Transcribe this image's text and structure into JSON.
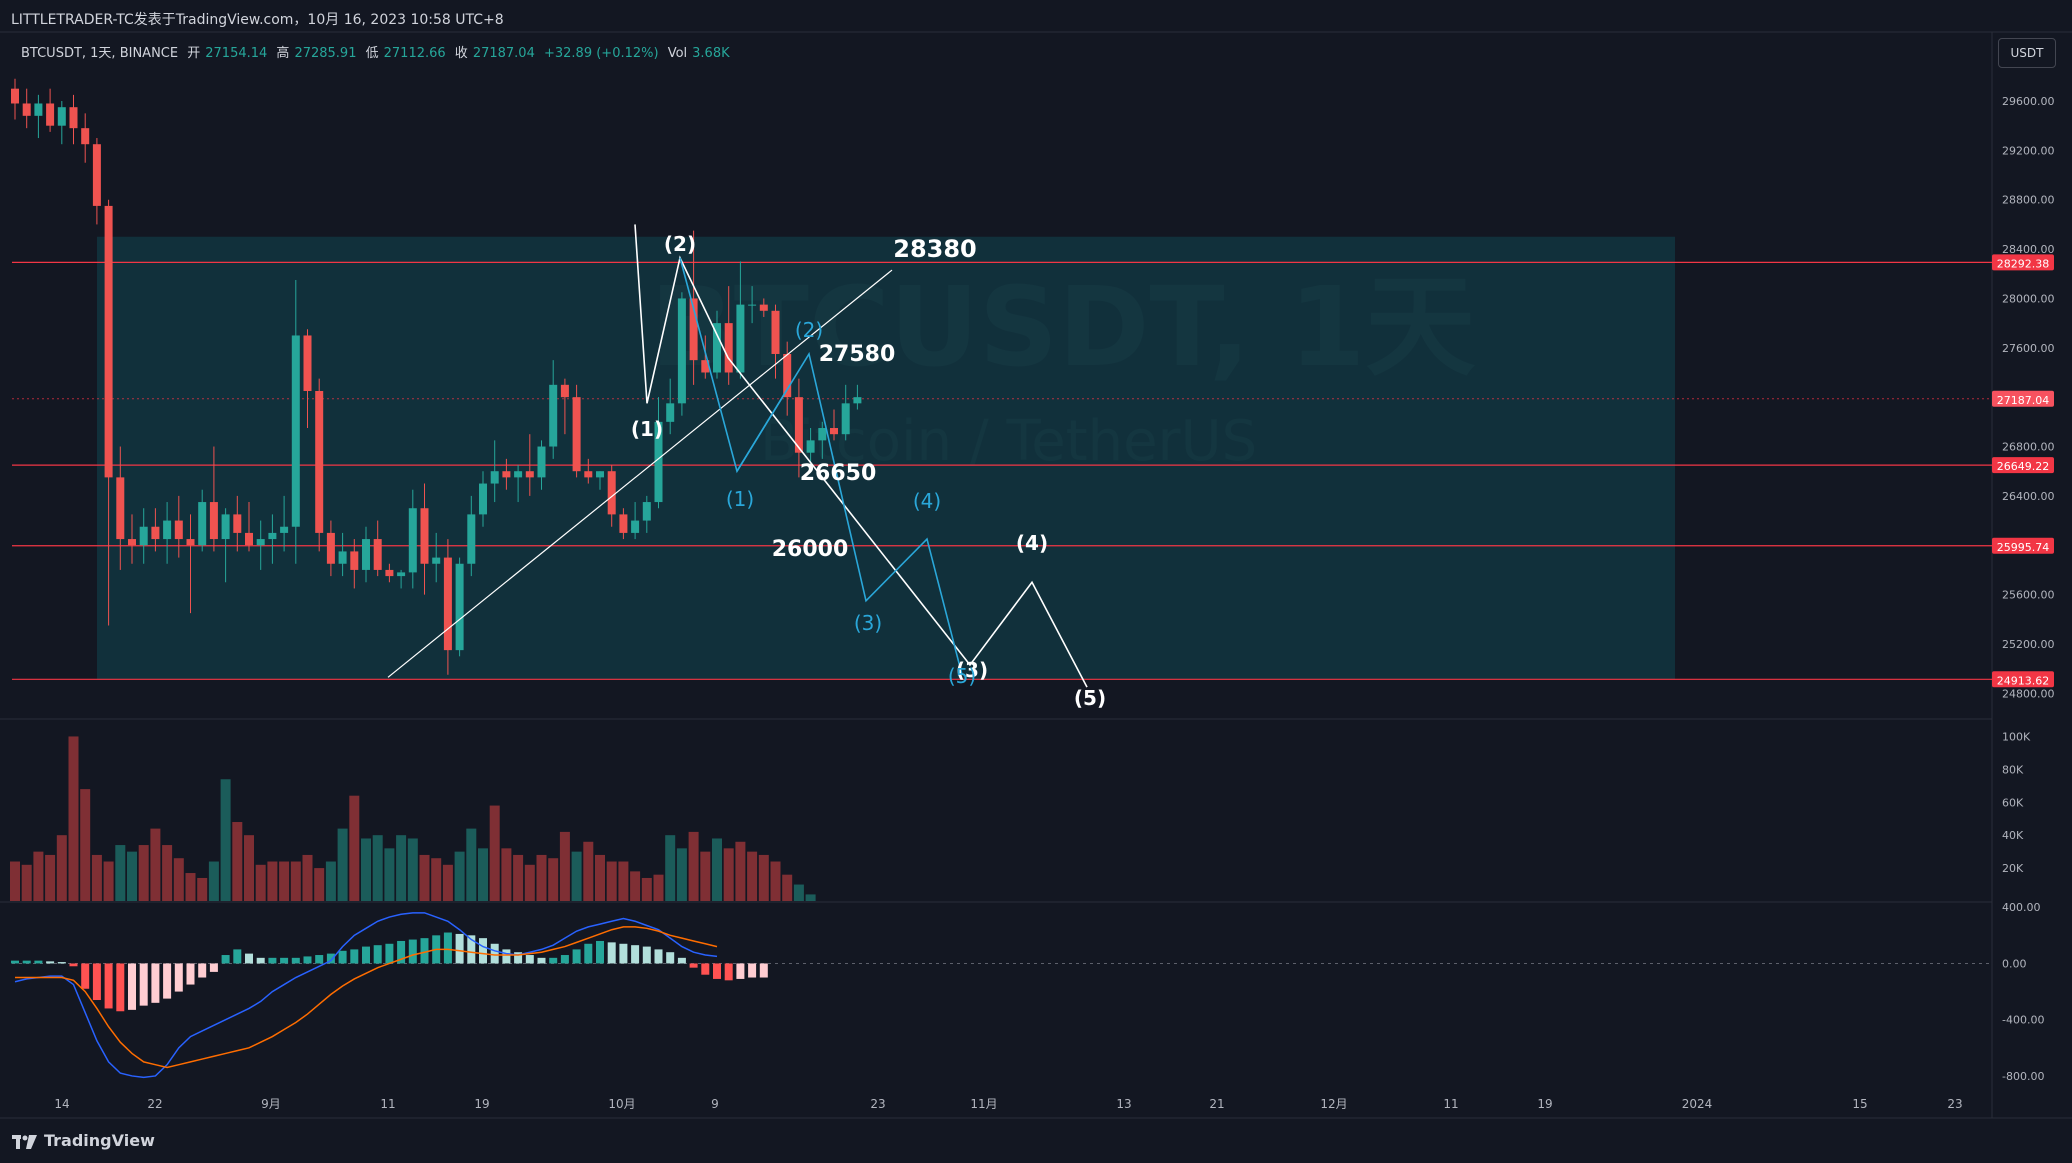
{
  "header": {
    "publisher_line": "LITTLETRADER-TC发表于TradingView.com，10月 16, 2023 10:58 UTC+8"
  },
  "symbol_bar": {
    "symbol": "BTCUSDT, 1天, BINANCE",
    "open_label": "开",
    "open": "27154.14",
    "high_label": "高",
    "high": "27285.91",
    "low_label": "低",
    "low": "27112.66",
    "close_label": "收",
    "close": "27187.04",
    "change": "+32.89 (+0.12%)",
    "vol_label": "Vol",
    "vol": "3.68K"
  },
  "unit_button": "USDT",
  "watermark": {
    "title": "BTCUSDT, 1天",
    "subtitle": "Bitcoin / TetherUS"
  },
  "brand": "TradingView",
  "colors": {
    "bg": "#131722",
    "up": "#26a69a",
    "down": "#ef5350",
    "zone": "#123a44",
    "hline": "#f23645",
    "macd": "#2962ff",
    "signal": "#ff6d00",
    "proj_cyan": "#2aa7d9",
    "proj_white": "#ffffff"
  },
  "chart_data": [
    {
      "type": "candlestick",
      "title": "BTCUSDT, 1天, BINANCE",
      "ylim": [
        24600,
        29900
      ],
      "y_ticks": [
        "29600.00",
        "29200.00",
        "28800.00",
        "28400.00",
        "28000.00",
        "27600.00",
        "26800.00",
        "26400.00",
        "25600.00",
        "25200.00",
        "24800.00"
      ],
      "x_ticks": [
        "14",
        "22",
        "9月",
        "11",
        "19",
        "10月",
        "9",
        "23",
        "11月",
        "13",
        "21",
        "12月",
        "11",
        "19",
        "2024",
        "15",
        "23"
      ],
      "hlines": [
        {
          "price": 28292.38,
          "label": "28292.38"
        },
        {
          "price": 26649.22,
          "label": "26649.22"
        },
        {
          "price": 25995.74,
          "label": "25995.74"
        },
        {
          "price": 24913.62,
          "label": "24913.62"
        }
      ],
      "last_price": {
        "price": 27187.04,
        "label": "27187.04"
      },
      "zone": {
        "top": 28500,
        "bottom": 24913.62
      },
      "candles": [
        [
          29700,
          29780,
          29450,
          29580
        ],
        [
          29580,
          29700,
          29380,
          29480
        ],
        [
          29480,
          29650,
          29300,
          29580
        ],
        [
          29580,
          29700,
          29350,
          29400
        ],
        [
          29400,
          29600,
          29250,
          29550
        ],
        [
          29550,
          29650,
          29250,
          29380
        ],
        [
          29380,
          29500,
          29100,
          29250
        ],
        [
          29250,
          29300,
          28600,
          28750
        ],
        [
          28750,
          28800,
          25350,
          26550
        ],
        [
          26550,
          26800,
          25800,
          26050
        ],
        [
          26050,
          26250,
          25850,
          26000
        ],
        [
          26000,
          26300,
          25850,
          26150
        ],
        [
          26150,
          26300,
          25950,
          26050
        ],
        [
          26050,
          26350,
          25850,
          26200
        ],
        [
          26200,
          26400,
          25900,
          26050
        ],
        [
          26050,
          26250,
          25450,
          26000
        ],
        [
          26000,
          26450,
          25950,
          26350
        ],
        [
          26350,
          26800,
          25950,
          26050
        ],
        [
          26050,
          26300,
          25700,
          26250
        ],
        [
          26250,
          26400,
          25950,
          26100
        ],
        [
          26100,
          26350,
          25950,
          26000
        ],
        [
          26000,
          26200,
          25800,
          26050
        ],
        [
          26050,
          26250,
          25850,
          26100
        ],
        [
          26100,
          26400,
          25950,
          26150
        ],
        [
          26150,
          28150,
          25850,
          27700
        ],
        [
          27700,
          27750,
          26950,
          27250
        ],
        [
          27250,
          27350,
          25950,
          26100
        ],
        [
          26100,
          26200,
          25750,
          25850
        ],
        [
          25850,
          26100,
          25750,
          25950
        ],
        [
          25950,
          26050,
          25650,
          25800
        ],
        [
          25800,
          26150,
          25700,
          26050
        ],
        [
          26050,
          26200,
          25750,
          25800
        ],
        [
          25800,
          25850,
          25700,
          25750
        ],
        [
          25750,
          25800,
          25650,
          25780
        ],
        [
          25780,
          26450,
          25650,
          26300
        ],
        [
          26300,
          26500,
          25600,
          25850
        ],
        [
          25850,
          26100,
          25700,
          25900
        ],
        [
          25900,
          26050,
          24950,
          25150
        ],
        [
          25150,
          25900,
          25100,
          25850
        ],
        [
          25850,
          26400,
          25750,
          26250
        ],
        [
          26250,
          26600,
          26150,
          26500
        ],
        [
          26500,
          26850,
          26350,
          26600
        ],
        [
          26600,
          26700,
          26450,
          26550
        ],
        [
          26550,
          26650,
          26350,
          26600
        ],
        [
          26600,
          26900,
          26400,
          26550
        ],
        [
          26550,
          26850,
          26450,
          26800
        ],
        [
          26800,
          27500,
          26700,
          27300
        ],
        [
          27300,
          27350,
          26900,
          27200
        ],
        [
          27200,
          27300,
          26550,
          26600
        ],
        [
          26600,
          26700,
          26500,
          26550
        ],
        [
          26550,
          26600,
          26450,
          26600
        ],
        [
          26600,
          26650,
          26150,
          26250
        ],
        [
          26250,
          26300,
          26050,
          26100
        ],
        [
          26100,
          26350,
          26050,
          26200
        ],
        [
          26200,
          26400,
          26100,
          26350
        ],
        [
          26350,
          27200,
          26300,
          27000
        ],
        [
          27000,
          27350,
          26900,
          27150
        ],
        [
          27150,
          28050,
          27050,
          28000
        ],
        [
          28000,
          28550,
          27300,
          27500
        ],
        [
          27500,
          27700,
          27350,
          27400
        ],
        [
          27400,
          27900,
          27350,
          27800
        ],
        [
          27800,
          28100,
          27300,
          27400
        ],
        [
          27400,
          28300,
          27350,
          27950
        ],
        [
          27950,
          28100,
          27800,
          27950
        ],
        [
          27950,
          28000,
          27850,
          27900
        ],
        [
          27900,
          27950,
          27350,
          27550
        ],
        [
          27550,
          27650,
          27050,
          27200
        ],
        [
          27200,
          27350,
          26550,
          26750
        ],
        [
          26750,
          26950,
          26600,
          26850
        ],
        [
          26850,
          27000,
          26700,
          26950
        ],
        [
          26950,
          27100,
          26850,
          26900
        ],
        [
          26900,
          27300,
          26850,
          27150
        ],
        [
          27150,
          27300,
          27100,
          27200
        ]
      ]
    },
    {
      "type": "bar",
      "title": "Vol",
      "ylim": [
        0,
        110
      ],
      "y_ticks": [
        "100K",
        "80K",
        "60K",
        "40K",
        "20K"
      ],
      "values": [
        24,
        22,
        30,
        28,
        40,
        100,
        68,
        28,
        24,
        34,
        30,
        34,
        44,
        34,
        26,
        17,
        14,
        24,
        74,
        48,
        40,
        22,
        24,
        24,
        24,
        28,
        20,
        24,
        44,
        64,
        38,
        40,
        32,
        40,
        38,
        28,
        26,
        22,
        30,
        44,
        32,
        58,
        32,
        28,
        22,
        28,
        26,
        42,
        30,
        36,
        28,
        24,
        24,
        18,
        14,
        16,
        40,
        32,
        42,
        30,
        38,
        32,
        36,
        30,
        28,
        24,
        16,
        10,
        4
      ],
      "colors": [
        "d",
        "d",
        "d",
        "d",
        "d",
        "d",
        "d",
        "d",
        "d",
        "u",
        "u",
        "d",
        "d",
        "d",
        "d",
        "d",
        "d",
        "u",
        "u",
        "d",
        "d",
        "d",
        "d",
        "d",
        "d",
        "d",
        "d",
        "u",
        "u",
        "d",
        "u",
        "u",
        "u",
        "u",
        "u",
        "d",
        "d",
        "d",
        "u",
        "u",
        "u",
        "d",
        "d",
        "d",
        "d",
        "d",
        "d",
        "d",
        "u",
        "d",
        "d",
        "d",
        "d",
        "d",
        "d",
        "d",
        "u",
        "u",
        "d",
        "d",
        "u",
        "d",
        "d",
        "d",
        "d",
        "d",
        "d",
        "u",
        "u"
      ]
    },
    {
      "type": "line",
      "title": "MACD",
      "ylim": [
        -900,
        430
      ],
      "y_ticks": [
        "400.00",
        "0.00",
        "-400.00",
        "-800.00"
      ],
      "series": [
        {
          "role": "histogram",
          "values": [
            20,
            20,
            20,
            15,
            10,
            -20,
            -180,
            -260,
            -320,
            -340,
            -330,
            -300,
            -280,
            -250,
            -200,
            -150,
            -100,
            -60,
            60,
            100,
            70,
            40,
            40,
            40,
            40,
            50,
            60,
            70,
            90,
            100,
            120,
            130,
            140,
            160,
            170,
            180,
            200,
            220,
            210,
            200,
            180,
            140,
            100,
            80,
            60,
            40,
            40,
            60,
            100,
            140,
            160,
            150,
            140,
            130,
            120,
            100,
            80,
            40,
            -30,
            -80,
            -110,
            -120,
            -110,
            -100,
            -100
          ]
        },
        {
          "role": "macd",
          "values": [
            -130,
            -110,
            -100,
            -90,
            -90,
            -150,
            -350,
            -550,
            -700,
            -780,
            -800,
            -810,
            -800,
            -720,
            -600,
            -520,
            -480,
            -440,
            -400,
            -360,
            -320,
            -270,
            -200,
            -150,
            -100,
            -60,
            -20,
            20,
            120,
            200,
            250,
            300,
            330,
            350,
            360,
            360,
            330,
            300,
            240,
            170,
            120,
            90,
            70,
            60,
            80,
            100,
            130,
            180,
            230,
            260,
            280,
            300,
            320,
            300,
            270,
            240,
            180,
            120,
            80,
            60,
            50
          ]
        },
        {
          "role": "signal",
          "values": [
            -100,
            -100,
            -100,
            -100,
            -100,
            -120,
            -200,
            -320,
            -450,
            -560,
            -640,
            -700,
            -720,
            -740,
            -720,
            -700,
            -680,
            -660,
            -640,
            -620,
            -600,
            -560,
            -520,
            -470,
            -420,
            -360,
            -290,
            -220,
            -160,
            -110,
            -70,
            -30,
            0,
            30,
            60,
            80,
            100,
            100,
            90,
            80,
            70,
            60,
            60,
            60,
            70,
            80,
            100,
            120,
            150,
            180,
            210,
            240,
            260,
            260,
            250,
            230,
            200,
            180,
            160,
            140,
            120
          ]
        }
      ]
    }
  ],
  "annotations": [
    {
      "text": "28380",
      "color": "white"
    },
    {
      "text": "27580",
      "color": "white"
    },
    {
      "text": "26650",
      "color": "white"
    },
    {
      "text": "26000",
      "color": "white"
    },
    {
      "text": "(1)",
      "color": "white"
    },
    {
      "text": "(2)",
      "color": "white"
    },
    {
      "text": "(3)",
      "color": "white"
    },
    {
      "text": "(4)",
      "color": "white"
    },
    {
      "text": "(5)",
      "color": "white"
    },
    {
      "text": "(1)",
      "color": "cyan"
    },
    {
      "text": "(2)",
      "color": "cyan"
    },
    {
      "text": "(3)",
      "color": "cyan"
    },
    {
      "text": "(4)",
      "color": "cyan"
    },
    {
      "text": "(5)",
      "color": "cyan"
    }
  ]
}
